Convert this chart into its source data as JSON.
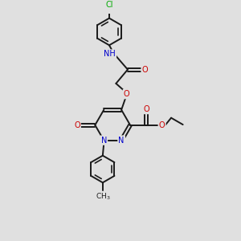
{
  "bg_color": "#e0e0e0",
  "bond_color": "#1a1a1a",
  "bond_width": 1.4,
  "atom_colors": {
    "C": "#1a1a1a",
    "N": "#0000cc",
    "O": "#cc0000",
    "Cl": "#00aa00",
    "H": "#1a1a1a"
  },
  "font_size": 7.0,
  "fig_size": [
    3.0,
    3.0
  ],
  "dpi": 100
}
